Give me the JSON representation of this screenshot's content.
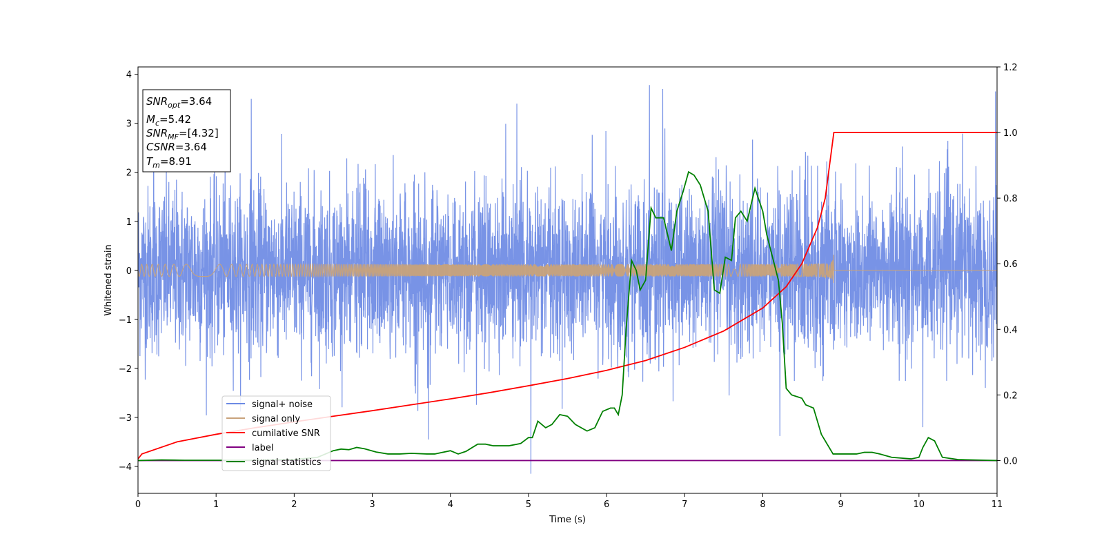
{
  "chart_data": {
    "type": "line",
    "title": "",
    "xlabel": "Time (s)",
    "ylabel": "Whitened strain",
    "xlim": [
      0,
      11
    ],
    "ylim_left": [
      -4.55,
      4.15
    ],
    "ylim_right": [
      -0.1,
      1.2
    ],
    "x_ticks": [
      "0",
      "1",
      "2",
      "3",
      "4",
      "5",
      "6",
      "7",
      "8",
      "9",
      "10",
      "11"
    ],
    "y_left_ticks": [
      "−4",
      "−3",
      "−2",
      "−1",
      "0",
      "1",
      "2",
      "3",
      "4"
    ],
    "y_right_ticks": [
      "0.0",
      "0.2",
      "0.4",
      "0.6",
      "0.8",
      "1.0",
      "1.2"
    ],
    "grid": false,
    "legend_position": "lower-left",
    "series": [
      {
        "name": "signal+ noise",
        "axis": "left",
        "color": "#6c8ae4",
        "kind": "noisy",
        "noise_std": 0.85,
        "peaks": [
          {
            "x": 1.45,
            "y": 3.5
          },
          {
            "x": 5.03,
            "y": -4.15
          },
          {
            "x": 6.55,
            "y": 3.78
          },
          {
            "x": 6.72,
            "y": 3.7
          },
          {
            "x": 10.98,
            "y": 3.65
          },
          {
            "x": 0.2,
            "y": 3.1
          },
          {
            "x": 4.85,
            "y": 3.4
          },
          {
            "x": 3.72,
            "y": -3.45
          },
          {
            "x": 8.22,
            "y": -3.38
          },
          {
            "x": 10.05,
            "y": -3.2
          }
        ]
      },
      {
        "name": "signal only",
        "axis": "left",
        "color": "#c8a27a",
        "kind": "chirp",
        "merger_time": 8.91,
        "peak_amplitude": 0.33
      },
      {
        "name": "cumilative SNR",
        "axis": "right",
        "color": "#ff0000",
        "x": [
          0,
          0.05,
          0.5,
          1,
          1.5,
          2,
          2.5,
          3,
          3.5,
          4,
          4.5,
          5,
          5.5,
          6,
          6.5,
          7,
          7.5,
          8,
          8.3,
          8.5,
          8.7,
          8.8,
          8.91,
          11
        ],
        "values": [
          0.005,
          0.02,
          0.057,
          0.08,
          0.1,
          0.118,
          0.135,
          0.152,
          0.17,
          0.188,
          0.207,
          0.228,
          0.25,
          0.275,
          0.305,
          0.345,
          0.395,
          0.465,
          0.53,
          0.6,
          0.71,
          0.8,
          1.0,
          1.0
        ]
      },
      {
        "name": "label",
        "axis": "right",
        "color": "#800080",
        "x": [
          0,
          11
        ],
        "values": [
          0,
          0
        ]
      },
      {
        "name": "signal statistics",
        "axis": "right",
        "color": "#008000",
        "x": [
          0,
          0.3,
          0.6,
          1,
          1.5,
          2,
          2.3,
          2.5,
          2.6,
          2.7,
          2.8,
          2.9,
          3.05,
          3.2,
          3.35,
          3.5,
          3.7,
          3.8,
          4.0,
          4.1,
          4.2,
          4.35,
          4.45,
          4.55,
          4.75,
          4.9,
          5.0,
          5.05,
          5.12,
          5.22,
          5.3,
          5.4,
          5.5,
          5.6,
          5.75,
          5.85,
          5.95,
          6.05,
          6.1,
          6.15,
          6.2,
          6.25,
          6.32,
          6.38,
          6.43,
          6.5,
          6.57,
          6.63,
          6.73,
          6.83,
          6.9,
          6.98,
          7.05,
          7.12,
          7.2,
          7.3,
          7.38,
          7.45,
          7.52,
          7.6,
          7.65,
          7.72,
          7.8,
          7.9,
          8.0,
          8.05,
          8.2,
          8.25,
          8.3,
          8.37,
          8.5,
          8.55,
          8.65,
          8.75,
          8.9,
          9.1,
          9.2,
          9.3,
          9.4,
          9.5,
          9.65,
          9.9,
          10.0,
          10.05,
          10.12,
          10.2,
          10.3,
          10.5,
          11.0
        ],
        "values": [
          0,
          0.002,
          0.001,
          0.001,
          0.001,
          0.003,
          0.01,
          0.03,
          0.035,
          0.033,
          0.04,
          0.036,
          0.026,
          0.02,
          0.02,
          0.022,
          0.02,
          0.02,
          0.03,
          0.02,
          0.028,
          0.05,
          0.05,
          0.045,
          0.045,
          0.052,
          0.07,
          0.07,
          0.12,
          0.1,
          0.11,
          0.14,
          0.135,
          0.11,
          0.09,
          0.1,
          0.15,
          0.16,
          0.16,
          0.14,
          0.2,
          0.4,
          0.61,
          0.58,
          0.52,
          0.55,
          0.77,
          0.74,
          0.74,
          0.64,
          0.76,
          0.82,
          0.88,
          0.87,
          0.84,
          0.76,
          0.52,
          0.51,
          0.62,
          0.61,
          0.74,
          0.76,
          0.73,
          0.83,
          0.76,
          0.69,
          0.55,
          0.42,
          0.22,
          0.2,
          0.19,
          0.17,
          0.16,
          0.08,
          0.02,
          0.02,
          0.02,
          0.025,
          0.025,
          0.02,
          0.01,
          0.005,
          0.01,
          0.04,
          0.07,
          0.06,
          0.01,
          0.003,
          0.0
        ]
      }
    ],
    "annotations": [
      {
        "kind": "textbox",
        "position": "top-left"
      }
    ]
  },
  "info_box": {
    "snr_opt": {
      "symbol": "SNR",
      "sub": "opt",
      "value": "=3.64"
    },
    "mc": {
      "symbol": "M",
      "sub": "c",
      "value": "=5.42"
    },
    "snr_mf": {
      "symbol": "SNR",
      "sub": "MF",
      "value": "=[4.32]"
    },
    "csnr": {
      "symbol": "CSNR",
      "value": "=3.64"
    },
    "tm": {
      "symbol": "T",
      "sub": "m",
      "value": "=8.91"
    }
  }
}
